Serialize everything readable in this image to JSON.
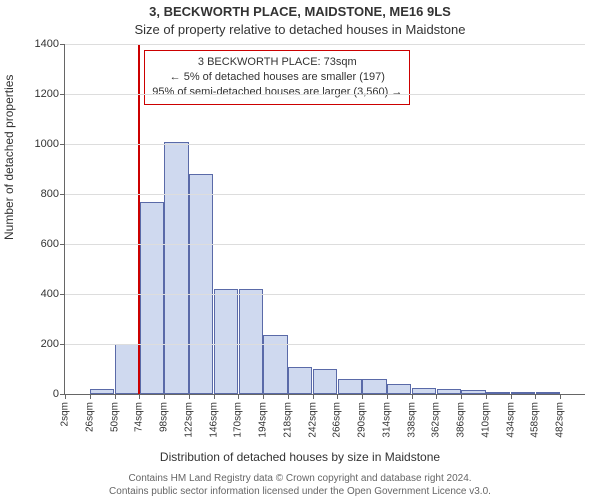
{
  "title": "3, BECKWORTH PLACE, MAIDSTONE, ME16 9LS",
  "subtitle": "Size of property relative to detached houses in Maidstone",
  "y_axis_label": "Number of detached properties",
  "x_axis_label": "Distribution of detached houses by size in Maidstone",
  "footer_line1": "Contains HM Land Registry data © Crown copyright and database right 2024.",
  "footer_line2": "Contains public sector information licensed under the Open Government Licence v3.0.",
  "annotation": {
    "line1": "3 BECKWORTH PLACE: 73sqm",
    "line2": "← 5% of detached houses are smaller (197)",
    "line3": "95% of semi-detached houses are larger (3,560) →",
    "border_color": "#cc0000"
  },
  "chart": {
    "type": "histogram",
    "ylim": [
      0,
      1400
    ],
    "ytick_step": 200,
    "background_color": "#ffffff",
    "grid_color": "#dddddd",
    "bar_fill": "#cfd9ef",
    "bar_stroke": "#5a6aa8",
    "marker_x_value": 73,
    "marker_color": "#cc0000",
    "x_min": 2,
    "x_max": 490,
    "x_tick_start": 2,
    "x_tick_step": 24,
    "x_unit": "sqm",
    "x_tick_count": 21,
    "bin_width": 24,
    "values": [
      0,
      20,
      200,
      770,
      1010,
      880,
      420,
      420,
      235,
      110,
      100,
      60,
      60,
      40,
      25,
      20,
      15,
      10,
      5,
      5,
      0
    ],
    "bar_rel_width": 0.98,
    "title_fontsize": 13,
    "label_fontsize": 12,
    "tick_fontsize": 11
  }
}
